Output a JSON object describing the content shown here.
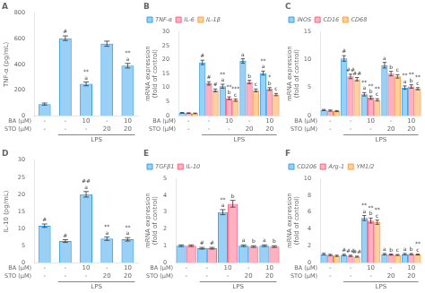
{
  "chart_data": [
    {
      "type": "bar",
      "title": "A",
      "ylabel": "TNF-α (pg/mL)",
      "xlabel": [
        "BA (μM)",
        "STO (μM)"
      ],
      "categories": [
        [
          "-",
          "-"
        ],
        [
          "-",
          "-"
        ],
        [
          "10",
          "-"
        ],
        [
          "-",
          "20"
        ],
        [
          "10",
          "20"
        ]
      ],
      "values": [
        90,
        605,
        248,
        562,
        390
      ],
      "errors": [
        8,
        18,
        15,
        20,
        18
      ],
      "ylim": [
        0,
        800
      ],
      "yticks": [
        0,
        200,
        400,
        600,
        800
      ],
      "grid": false,
      "annotations": [
        {
          "text": "#",
          "category": 1
        },
        {
          "text": "a",
          "category": 2
        },
        {
          "text": "**",
          "category": 2
        },
        {
          "text": "a",
          "category": 4
        },
        {
          "text": "**",
          "category": 4
        },
        {
          "text": "LPS",
          "span": [
            1,
            4
          ]
        }
      ]
    },
    {
      "type": "bar",
      "title": "B",
      "ylabel": "mRNA expression\n(fold of control)",
      "xlabel": [
        "BA (μM)",
        "STO (μM)"
      ],
      "categories": [
        [
          "-",
          "-"
        ],
        [
          "-",
          "-"
        ],
        [
          "10",
          "-"
        ],
        [
          "-",
          "20"
        ],
        [
          "10",
          "20"
        ]
      ],
      "series": [
        {
          "name": "TNF-α",
          "values": [
            1.0,
            19.0,
            10.5,
            19.5,
            15.2
          ],
          "errors": [
            0.1,
            0.8,
            0.7,
            0.8,
            0.7
          ]
        },
        {
          "name": "IL-6",
          "values": [
            0.9,
            11.5,
            6.2,
            12.0,
            9.5
          ],
          "errors": [
            0.1,
            0.6,
            0.5,
            0.6,
            0.5
          ]
        },
        {
          "name": "IL-1β",
          "values": [
            0.8,
            9.0,
            5.5,
            9.0,
            7.5
          ],
          "errors": [
            0.1,
            0.5,
            0.4,
            0.5,
            0.4
          ]
        }
      ],
      "ylim": [
        0,
        30
      ],
      "yticks": [
        0,
        5,
        10,
        15,
        20,
        25,
        30
      ],
      "grid": false,
      "legend": "upper left",
      "annotations": [
        {
          "text": "#",
          "category": 1,
          "series": "TNF-α"
        },
        {
          "text": "#",
          "category": 1,
          "series": "IL-6"
        },
        {
          "text": "#",
          "category": 1,
          "series": "IL-1β"
        },
        {
          "text": "a",
          "category": 2,
          "series": "TNF-α"
        },
        {
          "text": "**",
          "category": 2,
          "series": "TNF-α"
        },
        {
          "text": "b",
          "category": 2,
          "series": "IL-6"
        },
        {
          "text": "**",
          "category": 2,
          "series": "IL-6"
        },
        {
          "text": "c",
          "category": 2,
          "series": "IL-1β"
        },
        {
          "text": "***",
          "category": 2,
          "series": "IL-1β"
        },
        {
          "text": "a",
          "category": 3,
          "series": "TNF-α"
        },
        {
          "text": "b",
          "category": 3,
          "series": "IL-6"
        },
        {
          "text": "c",
          "category": 3,
          "series": "IL-1β"
        },
        {
          "text": "a",
          "category": 4,
          "series": "TNF-α"
        },
        {
          "text": "**",
          "category": 4,
          "series": "TNF-α"
        },
        {
          "text": "b",
          "category": 4,
          "series": "IL-6"
        },
        {
          "text": "*",
          "category": 4,
          "series": "IL-6"
        },
        {
          "text": "c",
          "category": 4,
          "series": "IL-1β"
        },
        {
          "text": "LPS",
          "span": [
            1,
            4
          ]
        }
      ]
    },
    {
      "type": "bar",
      "title": "C",
      "ylabel": "mRNA expression\n(fold of control)",
      "xlabel": [
        "BA (μM)",
        "STO (μM)"
      ],
      "categories": [
        [
          "-",
          "-"
        ],
        [
          "-",
          "-"
        ],
        [
          "10",
          "-"
        ],
        [
          "-",
          "20"
        ],
        [
          "10",
          "20"
        ]
      ],
      "series": [
        {
          "name": "iNOS",
          "values": [
            1.0,
            10.2,
            3.8,
            9.0,
            5.0
          ],
          "errors": [
            0.1,
            0.5,
            0.3,
            0.5,
            0.3
          ]
        },
        {
          "name": "CD16",
          "values": [
            0.9,
            7.0,
            3.2,
            7.5,
            5.2
          ],
          "errors": [
            0.1,
            0.4,
            0.3,
            0.4,
            0.3
          ]
        },
        {
          "name": "CD68",
          "values": [
            0.8,
            6.5,
            2.8,
            7.0,
            4.8
          ],
          "errors": [
            0.1,
            0.3,
            0.2,
            0.3,
            0.2
          ]
        }
      ],
      "ylim": [
        0,
        15
      ],
      "yticks": [
        0,
        5,
        10,
        15
      ],
      "grid": false,
      "legend": "upper left",
      "annotations": [
        {
          "text": "#",
          "category": 1,
          "series": "iNOS"
        },
        {
          "text": "##",
          "category": 1,
          "series": "CD16"
        },
        {
          "text": "##",
          "category": 1,
          "series": "CD68"
        },
        {
          "text": "a",
          "category": 2,
          "series": "iNOS"
        },
        {
          "text": "**",
          "category": 2,
          "series": "iNOS"
        },
        {
          "text": "b",
          "category": 2,
          "series": "CD16"
        },
        {
          "text": "**",
          "category": 2,
          "series": "CD16"
        },
        {
          "text": "c",
          "category": 2,
          "series": "CD68"
        },
        {
          "text": "**",
          "category": 2,
          "series": "CD68"
        },
        {
          "text": "a",
          "category": 3,
          "series": "iNOS"
        },
        {
          "text": "b",
          "category": 3,
          "series": "CD16"
        },
        {
          "text": "c",
          "category": 3,
          "series": "CD68"
        },
        {
          "text": "a",
          "category": 4,
          "series": "iNOS"
        },
        {
          "text": "**",
          "category": 4,
          "series": "iNOS"
        },
        {
          "text": "b",
          "category": 4,
          "series": "CD16"
        },
        {
          "text": "**",
          "category": 4,
          "series": "CD16"
        },
        {
          "text": "c",
          "category": 4,
          "series": "CD68"
        },
        {
          "text": "**",
          "category": 4,
          "series": "CD68"
        },
        {
          "text": "LPS",
          "span": [
            1,
            4
          ]
        }
      ]
    },
    {
      "type": "bar",
      "title": "D",
      "ylabel": "IL-10 (pg/mL)",
      "xlabel": [
        "BA (μM)",
        "STO (μM)"
      ],
      "categories": [
        [
          "-",
          "-"
        ],
        [
          "-",
          "-"
        ],
        [
          "10",
          "-"
        ],
        [
          "-",
          "20"
        ],
        [
          "10",
          "20"
        ]
      ],
      "values": [
        10.8,
        6.3,
        20.0,
        7.0,
        6.8
      ],
      "errors": [
        0.5,
        0.4,
        0.8,
        0.5,
        0.5
      ],
      "ylim": [
        0,
        30
      ],
      "yticks": [
        0,
        5,
        10,
        15,
        20,
        25,
        30
      ],
      "grid": false,
      "annotations": [
        {
          "text": "#",
          "category": 0
        },
        {
          "text": "#",
          "category": 1
        },
        {
          "text": "a",
          "category": 2
        },
        {
          "text": "##",
          "category": 2
        },
        {
          "text": "a",
          "category": 3
        },
        {
          "text": "**",
          "category": 3
        },
        {
          "text": "a",
          "category": 4
        },
        {
          "text": "**",
          "category": 4
        },
        {
          "text": "LPS",
          "span": [
            1,
            4
          ]
        }
      ]
    },
    {
      "type": "bar",
      "title": "E",
      "ylabel": "mRNA expression\n(fold of control)",
      "xlabel": [
        "BA (μM)",
        "STO (μM)"
      ],
      "categories": [
        [
          "-",
          "-"
        ],
        [
          "-",
          "-"
        ],
        [
          "10",
          "-"
        ],
        [
          "-",
          "20"
        ],
        [
          "10",
          "20"
        ]
      ],
      "series": [
        {
          "name": "TGFβ1",
          "values": [
            1.0,
            0.85,
            3.0,
            1.0,
            1.0
          ],
          "errors": [
            0.05,
            0.05,
            0.15,
            0.05,
            0.05
          ]
        },
        {
          "name": "IL-10",
          "values": [
            1.0,
            0.85,
            3.5,
            0.95,
            0.95
          ],
          "errors": [
            0.05,
            0.05,
            0.2,
            0.05,
            0.05
          ]
        }
      ],
      "ylim": [
        0,
        5
      ],
      "yticks": [
        0,
        1,
        2,
        3,
        4,
        5
      ],
      "grid": false,
      "legend": "upper left",
      "annotations": [
        {
          "text": "#",
          "category": 1,
          "series": "TGFβ1"
        },
        {
          "text": "#",
          "category": 1,
          "series": "IL-10"
        },
        {
          "text": "a",
          "category": 2,
          "series": "TGFβ1"
        },
        {
          "text": "**",
          "category": 2,
          "series": "TGFβ1"
        },
        {
          "text": "b",
          "category": 2,
          "series": "IL-10"
        },
        {
          "text": "a",
          "category": 3,
          "series": "TGFβ1"
        },
        {
          "text": "b",
          "category": 3,
          "series": "IL-10"
        },
        {
          "text": "a",
          "category": 4,
          "series": "TGFβ1"
        },
        {
          "text": "b",
          "category": 4,
          "series": "IL-10"
        },
        {
          "text": "LPS",
          "span": [
            1,
            4
          ]
        }
      ]
    },
    {
      "type": "bar",
      "title": "F",
      "ylabel": "mRNA expression\n(fold of control)",
      "xlabel": [
        "BA (μM)",
        "STO (μM)"
      ],
      "categories": [
        [
          "-",
          "-"
        ],
        [
          "-",
          "-"
        ],
        [
          "10",
          "-"
        ],
        [
          "-",
          "20"
        ],
        [
          "10",
          "20"
        ]
      ],
      "series": [
        {
          "name": "CD206",
          "values": [
            1.0,
            0.9,
            5.3,
            1.0,
            1.0
          ],
          "errors": [
            0.1,
            0.08,
            0.3,
            0.08,
            0.08
          ]
        },
        {
          "name": "Arg-1",
          "values": [
            0.9,
            0.8,
            5.0,
            0.95,
            1.0
          ],
          "errors": [
            0.08,
            0.07,
            0.3,
            0.07,
            0.07
          ]
        },
        {
          "name": "YM1/2",
          "values": [
            0.8,
            0.7,
            4.8,
            0.9,
            0.95
          ],
          "errors": [
            0.07,
            0.06,
            0.25,
            0.06,
            0.06
          ]
        }
      ],
      "ylim": [
        0,
        10
      ],
      "yticks": [
        0,
        2,
        4,
        6,
        8,
        10
      ],
      "grid": false,
      "legend": "upper left",
      "annotations": [
        {
          "text": "#",
          "category": 1,
          "series": "CD206"
        },
        {
          "text": "##",
          "category": 1,
          "series": "Arg-1"
        },
        {
          "text": "##",
          "category": 1,
          "series": "YM1/2"
        },
        {
          "text": "a",
          "category": 2,
          "series": "CD206"
        },
        {
          "text": "**",
          "category": 2,
          "series": "CD206"
        },
        {
          "text": "b",
          "category": 2,
          "series": "Arg-1"
        },
        {
          "text": "**",
          "category": 2,
          "series": "Arg-1"
        },
        {
          "text": "c",
          "category": 2,
          "series": "YM1/2"
        },
        {
          "text": "**",
          "category": 2,
          "series": "YM1/2"
        },
        {
          "text": "a",
          "category": 3,
          "series": "CD206"
        },
        {
          "text": "b",
          "category": 3,
          "series": "Arg-1"
        },
        {
          "text": "c",
          "category": 3,
          "series": "YM1/2"
        },
        {
          "text": "a",
          "category": 4,
          "series": "CD206"
        },
        {
          "text": "b",
          "category": 4,
          "series": "Arg-1"
        },
        {
          "text": "c",
          "category": 4,
          "series": "YM1/2"
        },
        {
          "text": "**",
          "category": 4,
          "series": "YM1/2"
        },
        {
          "text": "LPS",
          "span": [
            1,
            4
          ]
        }
      ]
    }
  ]
}
